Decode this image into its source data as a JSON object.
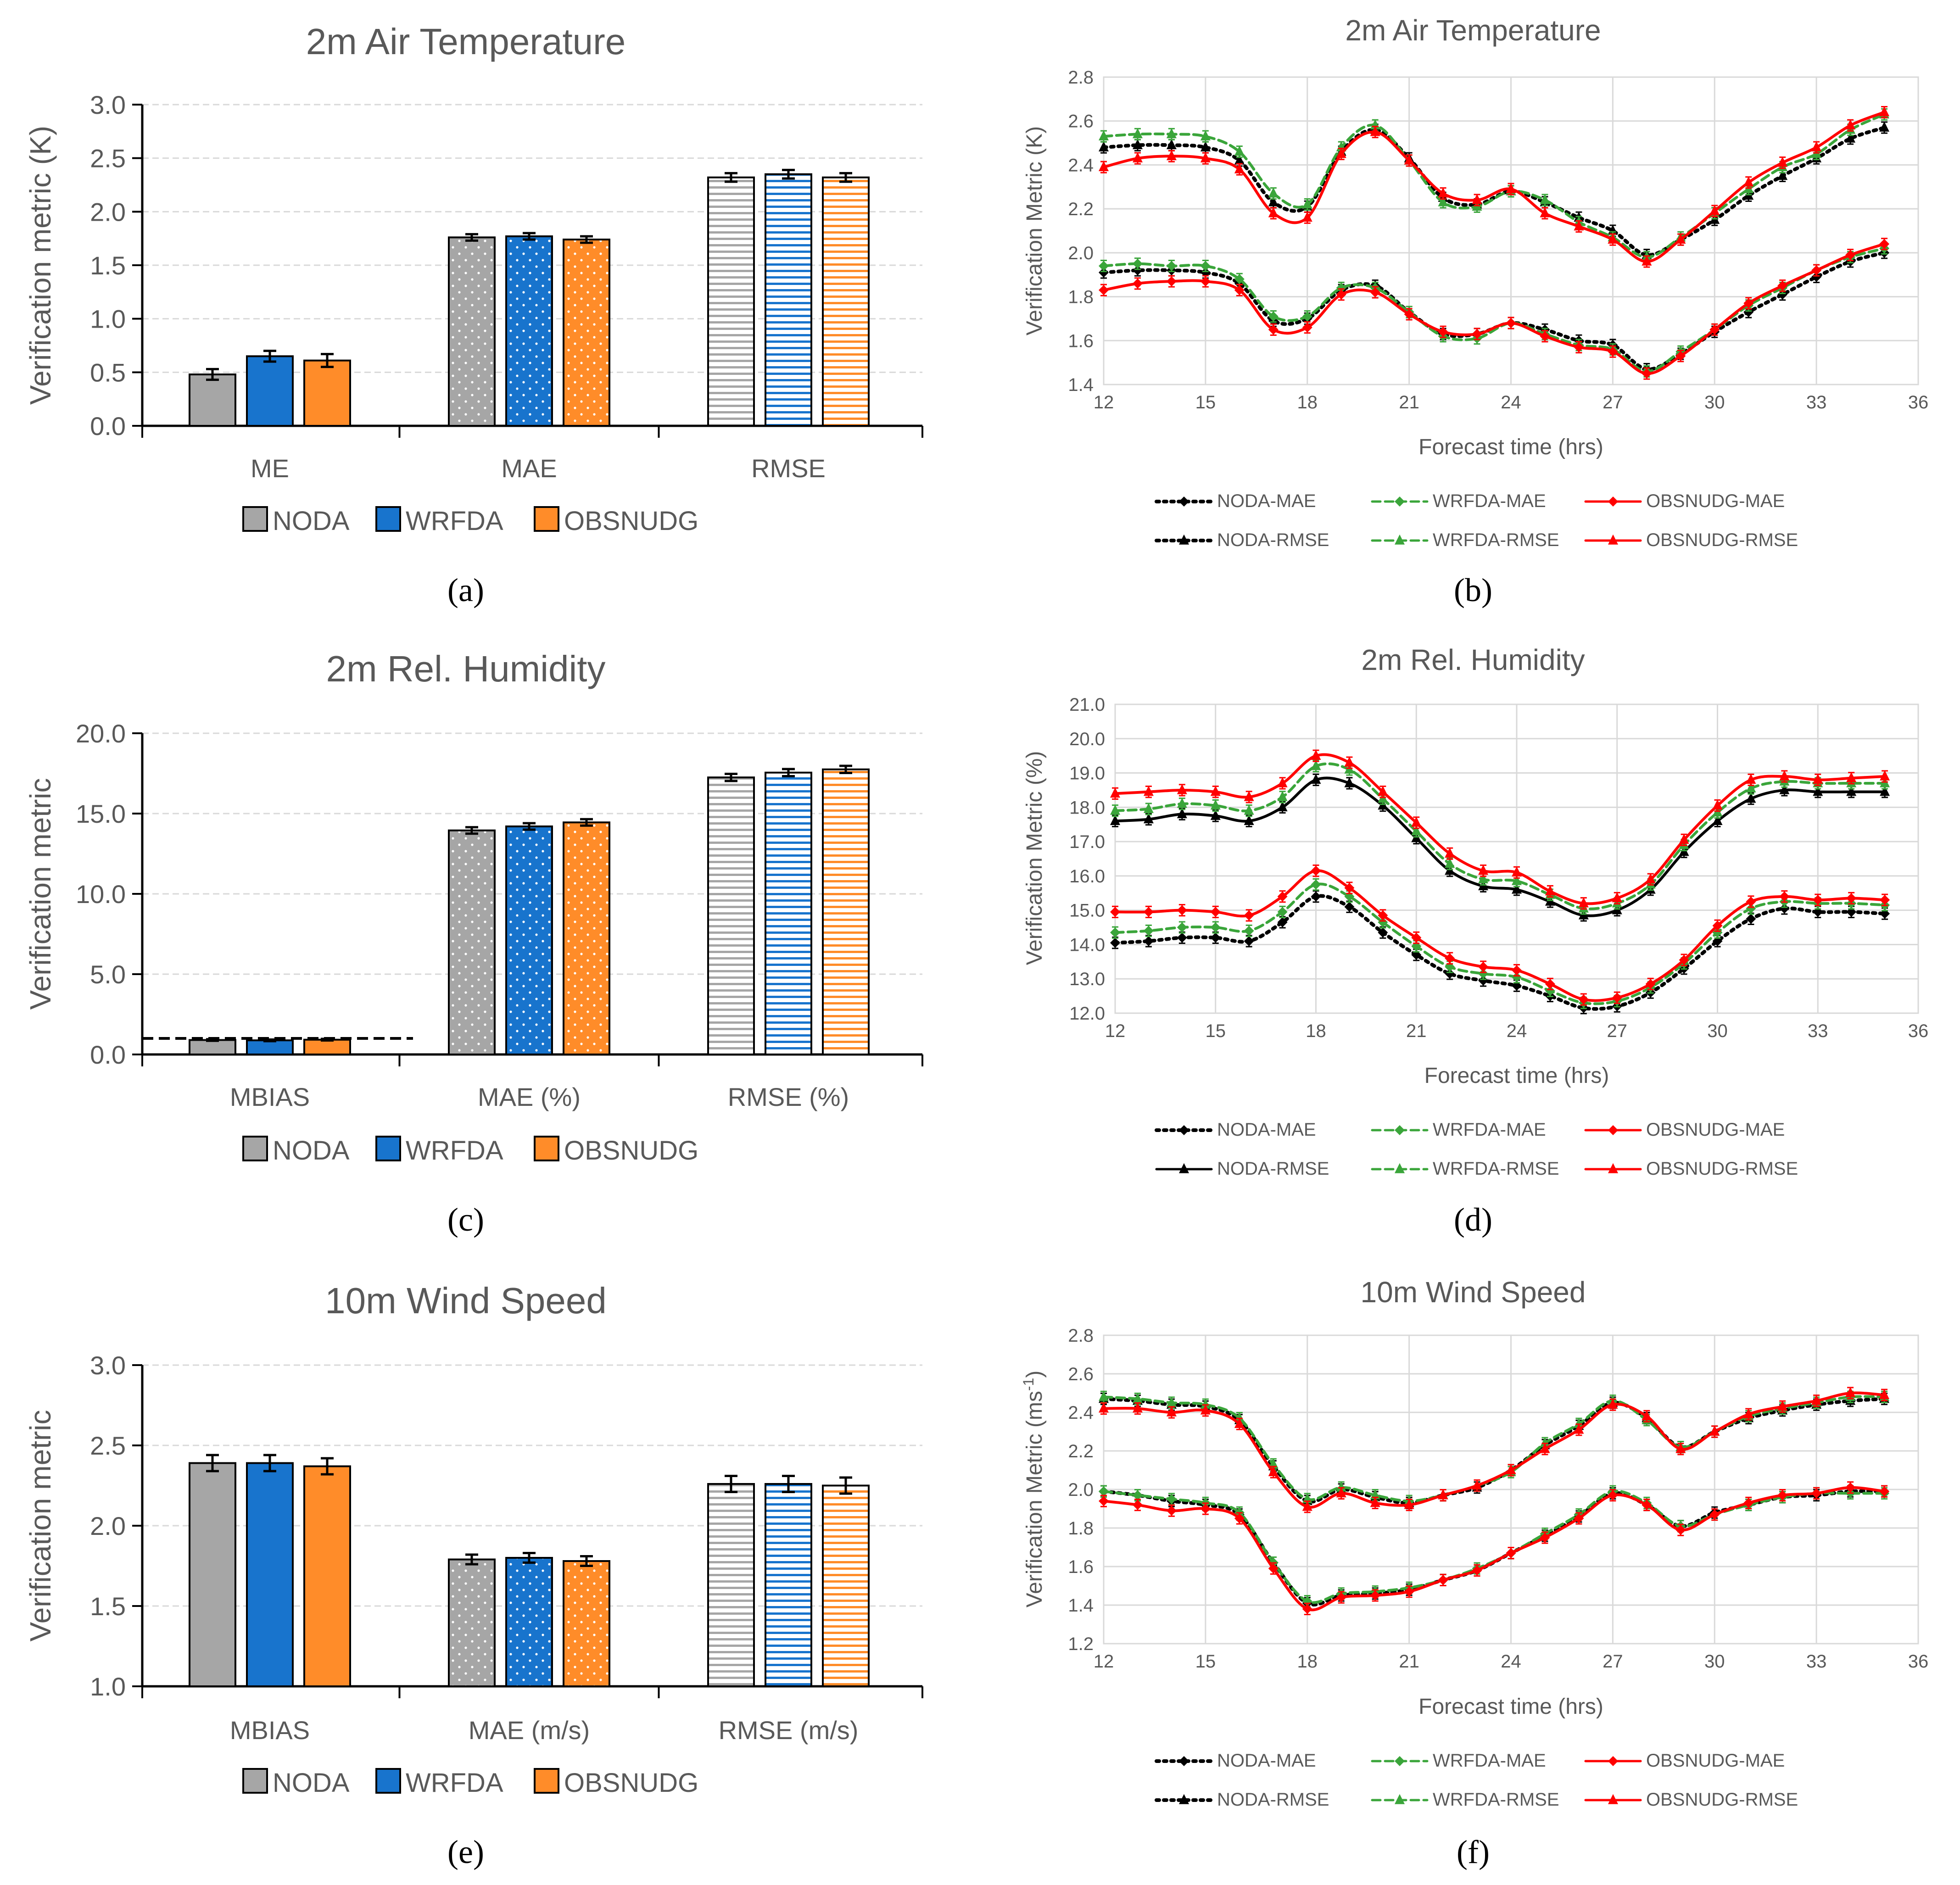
{
  "panel_labels": [
    "(a)",
    "(b)",
    "(c)",
    "(d)",
    "(e)",
    "(f)"
  ],
  "panel_letters": [
    "a",
    "b",
    "c",
    "d",
    "e",
    "f"
  ],
  "colors": {
    "NODA": "#a6a6a6",
    "WRFDA": "#1874cd",
    "OBSNUDG": "#ff8c29",
    "NODA_line": "#000000",
    "WRFDA_line": "#3aa53a",
    "OBSNUDG_line": "#ff0000",
    "grid": "#d9d9d9",
    "text": "#595959"
  },
  "chart_data": [
    {
      "id": "a",
      "type": "bar",
      "title": "2m Air Temperature",
      "ylabel": "Verification metric (K)",
      "ylim": [
        0.0,
        3.0
      ],
      "yticks": [
        0.0,
        0.5,
        1.0,
        1.5,
        2.0,
        2.5,
        3.0
      ],
      "ytick_labels": [
        "0.0",
        "0.5",
        "1.0",
        "1.5",
        "2.0",
        "2.5",
        "3.0"
      ],
      "categories": [
        "ME",
        "MAE",
        "RMSE"
      ],
      "category_patterns": [
        "solid",
        "dots",
        "hlines"
      ],
      "series": [
        {
          "name": "NODA",
          "values": [
            0.48,
            1.76,
            2.32
          ],
          "errors": [
            0.05,
            0.03,
            0.04
          ]
        },
        {
          "name": "WRFDA",
          "values": [
            0.65,
            1.77,
            2.35
          ],
          "errors": [
            0.05,
            0.03,
            0.04
          ]
        },
        {
          "name": "OBSNUDG",
          "values": [
            0.61,
            1.74,
            2.32
          ],
          "errors": [
            0.06,
            0.03,
            0.04
          ]
        }
      ],
      "reference_line": null,
      "legend": [
        "NODA",
        "WRFDA",
        "OBSNUDG"
      ]
    },
    {
      "id": "b",
      "type": "line",
      "title": "2m Air Temperature",
      "ylabel": "Verification Metric (K)",
      "xlabel": "Forecast time (hrs)",
      "xlim": [
        12,
        36
      ],
      "xticks": [
        12,
        15,
        18,
        21,
        24,
        27,
        30,
        33,
        36
      ],
      "ylim": [
        1.4,
        2.8
      ],
      "yticks": [
        1.4,
        1.6,
        1.8,
        2.0,
        2.2,
        2.4,
        2.6,
        2.8
      ],
      "ytick_labels": [
        "1.4",
        "1.6",
        "1.8",
        "2.0",
        "2.2",
        "2.4",
        "2.6",
        "2.8"
      ],
      "x": [
        12,
        13,
        14,
        15,
        16,
        17,
        18,
        19,
        20,
        21,
        22,
        23,
        24,
        25,
        26,
        27,
        28,
        29,
        30,
        31,
        32,
        33,
        34,
        35
      ],
      "series": [
        {
          "name": "NODA-MAE",
          "style": "dotted",
          "marker": "diamond",
          "color": "#000000",
          "values": [
            1.91,
            1.92,
            1.92,
            1.91,
            1.86,
            1.69,
            1.7,
            1.83,
            1.85,
            1.73,
            1.63,
            1.63,
            1.68,
            1.65,
            1.6,
            1.58,
            1.47,
            1.54,
            1.64,
            1.73,
            1.81,
            1.89,
            1.96,
            2.0
          ]
        },
        {
          "name": "WRFDA-MAE",
          "style": "dashed",
          "marker": "diamond",
          "color": "#3aa53a",
          "values": [
            1.94,
            1.95,
            1.94,
            1.94,
            1.88,
            1.71,
            1.71,
            1.84,
            1.84,
            1.73,
            1.62,
            1.61,
            1.68,
            1.63,
            1.58,
            1.56,
            1.46,
            1.55,
            1.65,
            1.76,
            1.84,
            1.92,
            1.98,
            2.02
          ]
        },
        {
          "name": "OBSNUDG-MAE",
          "style": "solid",
          "marker": "diamond",
          "color": "#ff0000",
          "values": [
            1.83,
            1.86,
            1.87,
            1.87,
            1.83,
            1.65,
            1.66,
            1.81,
            1.82,
            1.72,
            1.64,
            1.63,
            1.68,
            1.62,
            1.57,
            1.55,
            1.45,
            1.53,
            1.65,
            1.77,
            1.85,
            1.92,
            1.99,
            2.04
          ]
        },
        {
          "name": "NODA-RMSE",
          "style": "dotted",
          "marker": "triangle",
          "color": "#000000",
          "values": [
            2.48,
            2.49,
            2.49,
            2.48,
            2.42,
            2.23,
            2.21,
            2.46,
            2.56,
            2.43,
            2.25,
            2.22,
            2.28,
            2.23,
            2.16,
            2.1,
            1.99,
            2.06,
            2.15,
            2.26,
            2.35,
            2.43,
            2.52,
            2.57
          ]
        },
        {
          "name": "WRFDA-RMSE",
          "style": "dashed",
          "marker": "triangle",
          "color": "#3aa53a",
          "values": [
            2.53,
            2.54,
            2.54,
            2.53,
            2.46,
            2.27,
            2.22,
            2.48,
            2.58,
            2.42,
            2.23,
            2.21,
            2.28,
            2.24,
            2.14,
            2.07,
            1.98,
            2.07,
            2.18,
            2.29,
            2.39,
            2.45,
            2.56,
            2.63
          ]
        },
        {
          "name": "OBSNUDG-RMSE",
          "style": "solid",
          "marker": "triangle",
          "color": "#ff0000",
          "values": [
            2.39,
            2.43,
            2.44,
            2.43,
            2.38,
            2.18,
            2.16,
            2.45,
            2.55,
            2.42,
            2.27,
            2.24,
            2.29,
            2.18,
            2.12,
            2.06,
            1.96,
            2.06,
            2.19,
            2.32,
            2.41,
            2.48,
            2.58,
            2.64
          ]
        }
      ]
    },
    {
      "id": "c",
      "type": "bar",
      "title": "2m Rel. Humidity",
      "ylabel": "Verification metric",
      "ylim": [
        0.0,
        20.0
      ],
      "yticks": [
        0.0,
        5.0,
        10.0,
        15.0,
        20.0
      ],
      "ytick_labels": [
        "0.0",
        "5.0",
        "10.0",
        "15.0",
        "20.0"
      ],
      "categories": [
        "MBIAS",
        "MAE (%)",
        "RMSE (%)"
      ],
      "category_patterns": [
        "solid",
        "dots",
        "hlines"
      ],
      "series": [
        {
          "name": "NODA",
          "values": [
            0.9,
            13.95,
            17.25
          ],
          "errors": [
            0.05,
            0.2,
            0.22
          ]
        },
        {
          "name": "WRFDA",
          "values": [
            0.88,
            14.2,
            17.55
          ],
          "errors": [
            0.05,
            0.2,
            0.22
          ]
        },
        {
          "name": "OBSNUDG",
          "values": [
            0.92,
            14.45,
            17.75
          ],
          "errors": [
            0.05,
            0.2,
            0.22
          ]
        }
      ],
      "reference_line": 1.0,
      "legend": [
        "NODA",
        "WRFDA",
        "OBSNUDG"
      ]
    },
    {
      "id": "d",
      "type": "line",
      "title": "2m Rel. Humidity",
      "ylabel": "Verification Metric (%)",
      "xlabel": "Forecast time (hrs)",
      "xlim": [
        12,
        36
      ],
      "xticks": [
        12,
        15,
        18,
        21,
        24,
        27,
        30,
        33,
        36
      ],
      "ylim": [
        12.0,
        21.0
      ],
      "yticks": [
        12.0,
        13.0,
        14.0,
        15.0,
        16.0,
        17.0,
        18.0,
        19.0,
        20.0,
        21.0
      ],
      "ytick_labels": [
        "12.0",
        "13.0",
        "14.0",
        "15.0",
        "16.0",
        "17.0",
        "18.0",
        "19.0",
        "20.0",
        "21.0"
      ],
      "x": [
        12,
        13,
        14,
        15,
        16,
        17,
        18,
        19,
        20,
        21,
        22,
        23,
        24,
        25,
        26,
        27,
        28,
        29,
        30,
        31,
        32,
        33,
        34,
        35
      ],
      "series": [
        {
          "name": "NODA-MAE",
          "style": "dotted",
          "marker": "diamond",
          "color": "#000000",
          "values": [
            14.05,
            14.1,
            14.2,
            14.2,
            14.1,
            14.65,
            15.4,
            15.1,
            14.35,
            13.7,
            13.15,
            12.95,
            12.8,
            12.5,
            12.15,
            12.2,
            12.6,
            13.3,
            14.1,
            14.75,
            15.05,
            14.95,
            14.95,
            14.9
          ]
        },
        {
          "name": "WRFDA-MAE",
          "style": "dashed",
          "marker": "diamond",
          "color": "#3aa53a",
          "values": [
            14.35,
            14.4,
            14.5,
            14.5,
            14.4,
            14.95,
            15.75,
            15.4,
            14.65,
            13.95,
            13.35,
            13.15,
            13.05,
            12.65,
            12.3,
            12.35,
            12.75,
            13.45,
            14.35,
            15.05,
            15.25,
            15.2,
            15.2,
            15.15
          ]
        },
        {
          "name": "OBSNUDG-MAE",
          "style": "solid",
          "marker": "diamond",
          "color": "#ff0000",
          "values": [
            14.95,
            14.95,
            15.0,
            14.95,
            14.85,
            15.4,
            16.15,
            15.65,
            14.85,
            14.2,
            13.6,
            13.35,
            13.25,
            12.85,
            12.4,
            12.45,
            12.85,
            13.55,
            14.55,
            15.25,
            15.4,
            15.3,
            15.35,
            15.3
          ]
        },
        {
          "name": "NODA-RMSE",
          "style": "solid",
          "marker": "triangle",
          "color": "#000000",
          "values": [
            17.6,
            17.65,
            17.8,
            17.75,
            17.6,
            18.0,
            18.8,
            18.7,
            18.05,
            17.1,
            16.15,
            15.7,
            15.6,
            15.25,
            14.85,
            15.0,
            15.6,
            16.7,
            17.6,
            18.25,
            18.5,
            18.45,
            18.45,
            18.45
          ]
        },
        {
          "name": "WRFDA-RMSE",
          "style": "dashed",
          "marker": "triangle",
          "color": "#3aa53a",
          "values": [
            17.9,
            17.95,
            18.1,
            18.05,
            17.9,
            18.3,
            19.2,
            19.1,
            18.25,
            17.3,
            16.35,
            15.9,
            15.85,
            15.45,
            15.05,
            15.2,
            15.75,
            16.9,
            17.85,
            18.55,
            18.75,
            18.7,
            18.7,
            18.7
          ]
        },
        {
          "name": "OBSNUDG-RMSE",
          "style": "solid",
          "marker": "triangle",
          "color": "#ff0000",
          "values": [
            18.4,
            18.45,
            18.5,
            18.45,
            18.3,
            18.7,
            19.5,
            19.3,
            18.45,
            17.55,
            16.65,
            16.15,
            16.1,
            15.55,
            15.2,
            15.35,
            15.9,
            17.05,
            18.05,
            18.8,
            18.9,
            18.8,
            18.85,
            18.9
          ]
        }
      ]
    },
    {
      "id": "e",
      "type": "bar",
      "title": "10m Wind Speed",
      "ylabel": "Verification metric",
      "ylim": [
        1.0,
        3.0
      ],
      "yticks": [
        1.0,
        1.5,
        2.0,
        2.5,
        3.0
      ],
      "ytick_labels": [
        "1.0",
        "1.5",
        "2.0",
        "2.5",
        "3.0"
      ],
      "categories": [
        "MBIAS",
        "MAE (m/s)",
        "RMSE (m/s)"
      ],
      "category_patterns": [
        "solid",
        "dots",
        "hlines"
      ],
      "series": [
        {
          "name": "NODA",
          "values": [
            2.39,
            1.79,
            2.26
          ],
          "errors": [
            0.05,
            0.03,
            0.05
          ]
        },
        {
          "name": "WRFDA",
          "values": [
            2.39,
            1.8,
            2.26
          ],
          "errors": [
            0.05,
            0.03,
            0.05
          ]
        },
        {
          "name": "OBSNUDG",
          "values": [
            2.37,
            1.78,
            2.25
          ],
          "errors": [
            0.05,
            0.03,
            0.05
          ]
        }
      ],
      "reference_line": null,
      "legend": [
        "NODA",
        "WRFDA",
        "OBSNUDG"
      ]
    },
    {
      "id": "f",
      "type": "line",
      "title": "10m Wind Speed",
      "ylabel": "Verification Metric (ms-1)",
      "ylabel_main": "Verification Metric (ms",
      "ylabel_sup": "-1",
      "ylabel_tail": ")",
      "xlabel": "Forecast time (hrs)",
      "xlim": [
        12,
        36
      ],
      "xticks": [
        12,
        15,
        18,
        21,
        24,
        27,
        30,
        33,
        36
      ],
      "ylim": [
        1.2,
        2.8
      ],
      "yticks": [
        1.2,
        1.4,
        1.6,
        1.8,
        2.0,
        2.2,
        2.4,
        2.6,
        2.8
      ],
      "ytick_labels": [
        "1.2",
        "1.4",
        "1.6",
        "1.8",
        "2.0",
        "2.2",
        "2.4",
        "2.6",
        "2.8"
      ],
      "x": [
        12,
        13,
        14,
        15,
        16,
        17,
        18,
        19,
        20,
        21,
        22,
        23,
        24,
        25,
        26,
        27,
        28,
        29,
        30,
        31,
        32,
        33,
        34,
        35
      ],
      "series": [
        {
          "name": "NODA-MAE",
          "style": "dotted",
          "marker": "diamond",
          "color": "#000000",
          "values": [
            1.99,
            1.97,
            1.94,
            1.92,
            1.87,
            1.62,
            1.41,
            1.45,
            1.46,
            1.48,
            1.53,
            1.58,
            1.67,
            1.76,
            1.86,
            1.98,
            1.92,
            1.81,
            1.88,
            1.92,
            1.96,
            1.97,
            1.99,
            1.99
          ]
        },
        {
          "name": "WRFDA-MAE",
          "style": "dashed",
          "marker": "diamond",
          "color": "#3aa53a",
          "values": [
            1.99,
            1.97,
            1.95,
            1.93,
            1.88,
            1.62,
            1.42,
            1.46,
            1.47,
            1.49,
            1.53,
            1.59,
            1.67,
            1.77,
            1.87,
            1.99,
            1.93,
            1.81,
            1.87,
            1.92,
            1.96,
            1.98,
            1.98,
            1.98
          ]
        },
        {
          "name": "OBSNUDG-MAE",
          "style": "solid",
          "marker": "diamond",
          "color": "#ff0000",
          "values": [
            1.94,
            1.92,
            1.89,
            1.9,
            1.85,
            1.59,
            1.38,
            1.44,
            1.45,
            1.47,
            1.53,
            1.58,
            1.67,
            1.75,
            1.85,
            1.97,
            1.92,
            1.79,
            1.87,
            1.93,
            1.97,
            1.98,
            2.01,
            1.99
          ]
        },
        {
          "name": "NODA-RMSE",
          "style": "dotted",
          "marker": "triangle",
          "color": "#000000",
          "values": [
            2.47,
            2.46,
            2.44,
            2.43,
            2.36,
            2.12,
            1.94,
            2.0,
            1.96,
            1.93,
            1.97,
            2.01,
            2.1,
            2.23,
            2.33,
            2.45,
            2.37,
            2.22,
            2.3,
            2.37,
            2.41,
            2.44,
            2.46,
            2.47
          ]
        },
        {
          "name": "WRFDA-RMSE",
          "style": "dashed",
          "marker": "triangle",
          "color": "#3aa53a",
          "values": [
            2.48,
            2.47,
            2.45,
            2.44,
            2.37,
            2.13,
            1.95,
            2.01,
            1.97,
            1.94,
            1.97,
            2.02,
            2.09,
            2.24,
            2.34,
            2.46,
            2.36,
            2.22,
            2.3,
            2.38,
            2.42,
            2.45,
            2.48,
            2.48
          ]
        },
        {
          "name": "OBSNUDG-RMSE",
          "style": "solid",
          "marker": "triangle",
          "color": "#ff0000",
          "values": [
            2.42,
            2.42,
            2.4,
            2.41,
            2.34,
            2.09,
            1.91,
            1.98,
            1.93,
            1.92,
            1.97,
            2.02,
            2.1,
            2.21,
            2.31,
            2.44,
            2.38,
            2.21,
            2.3,
            2.39,
            2.43,
            2.46,
            2.5,
            2.49
          ]
        }
      ]
    }
  ]
}
